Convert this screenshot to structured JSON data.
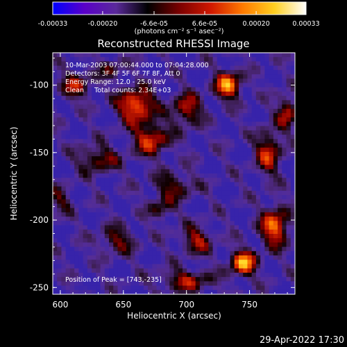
{
  "colorbar": {
    "tick_labels": [
      "-0.00033",
      "-0.00020",
      "-6.6e-05",
      "6.6e-05",
      "0.00020",
      "0.00033"
    ],
    "tick_values": [
      -0.00033,
      -0.0002,
      -6.6e-05,
      6.6e-05,
      0.0002,
      0.00033
    ],
    "range": [
      -0.00033,
      0.00033
    ],
    "unit_label": "(photons cm⁻² s⁻¹ asec⁻²)",
    "colormap": [
      "#0000ff",
      "#5a00c8",
      "#5a2a9a",
      "#000000",
      "#7a0000",
      "#d01800",
      "#ff7a00",
      "#ffcf20",
      "#ffffff"
    ]
  },
  "chart_data": {
    "type": "heatmap",
    "title": "Reconstructed RHESSI Image",
    "xlabel": "Heliocentric X (arcsec)",
    "ylabel": "Heliocentric Y (arcsec)",
    "xlim": [
      594,
      786
    ],
    "ylim": [
      -255,
      -76
    ],
    "x_ticks": [
      600,
      650,
      700,
      750
    ],
    "y_ticks": [
      -250,
      -200,
      -150,
      -100
    ],
    "x_tick_labels": [
      "600",
      "650",
      "700",
      "750"
    ],
    "y_tick_labels": [
      "-250",
      "-200",
      "-150",
      "-100"
    ],
    "annotations": [
      "10-Mar-2003 07:00:44.000 to 07:04:28.000",
      "Detectors: 3F 4F 5F 6F 7F 8F, Att 0",
      "Energy Range: 12.0 - 25.0 keV",
      "Clean     Total counts: 2.34E+03"
    ],
    "peak_label": "Position of Peak = [743,-235]",
    "peak": [
      743,
      -235
    ],
    "sources": [
      {
        "x": 745,
        "y": -232,
        "intensity": 1.0,
        "sx": 10,
        "sy": 9
      },
      {
        "x": 770,
        "y": -205,
        "intensity": 0.85,
        "sx": 11,
        "sy": 14
      },
      {
        "x": 733,
        "y": -100,
        "intensity": 0.95,
        "sx": 10,
        "sy": 10
      },
      {
        "x": 660,
        "y": -115,
        "intensity": 0.9,
        "sx": 14,
        "sy": 12
      },
      {
        "x": 672,
        "y": -140,
        "intensity": 0.7,
        "sx": 14,
        "sy": 12
      },
      {
        "x": 700,
        "y": -118,
        "intensity": 0.6,
        "sx": 12,
        "sy": 12
      },
      {
        "x": 612,
        "y": -100,
        "intensity": 0.55,
        "sx": 12,
        "sy": 10
      },
      {
        "x": 630,
        "y": -155,
        "intensity": 0.5,
        "sx": 16,
        "sy": 10
      },
      {
        "x": 690,
        "y": -175,
        "intensity": 0.45,
        "sx": 16,
        "sy": 10
      },
      {
        "x": 765,
        "y": -150,
        "intensity": 0.65,
        "sx": 10,
        "sy": 16
      },
      {
        "x": 645,
        "y": -215,
        "intensity": 0.45,
        "sx": 14,
        "sy": 10
      },
      {
        "x": 708,
        "y": -215,
        "intensity": 0.55,
        "sx": 12,
        "sy": 10
      },
      {
        "x": 700,
        "y": -245,
        "intensity": 0.55,
        "sx": 20,
        "sy": 8
      },
      {
        "x": 680,
        "y": -192,
        "intensity": 0.4,
        "sx": 10,
        "sy": 8
      },
      {
        "x": 780,
        "y": -120,
        "intensity": 0.6,
        "sx": 8,
        "sy": 12
      },
      {
        "x": 600,
        "y": -185,
        "intensity": 0.35,
        "sx": 10,
        "sy": 10
      },
      {
        "x": 640,
        "y": -88,
        "intensity": 0.35,
        "sx": 10,
        "sy": 8
      }
    ]
  },
  "footer_timestamp": "29-Apr-2022 17:30"
}
